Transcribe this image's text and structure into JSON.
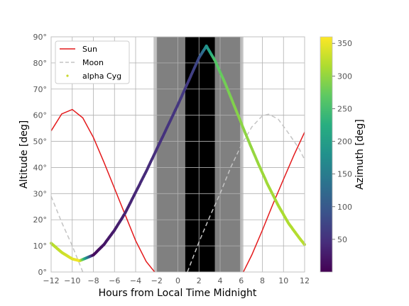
{
  "chart_data": {
    "type": "scatter",
    "xlabel": "Hours from Local Time Midnight",
    "ylabel": "Altitude [deg]",
    "xlim": [
      -12,
      12
    ],
    "ylim": [
      0,
      90
    ],
    "x_ticks": [
      -12,
      -10,
      -8,
      -6,
      -4,
      -2,
      0,
      2,
      4,
      6,
      8,
      10,
      12
    ],
    "x_tick_labels": [
      "−12",
      "−10",
      "−8",
      "−6",
      "−4",
      "−2",
      "0",
      "2",
      "4",
      "6",
      "8",
      "10",
      "12"
    ],
    "y_ticks": [
      0,
      10,
      20,
      30,
      40,
      50,
      60,
      70,
      80,
      90
    ],
    "y_tick_labels": [
      "0°",
      "10°",
      "20°",
      "30°",
      "40°",
      "50°",
      "60°",
      "70°",
      "80°",
      "90°"
    ],
    "grid": true,
    "legend": {
      "placement": "top-left",
      "entries": [
        {
          "label": "Sun",
          "style": "solid",
          "color": "#e41a1c"
        },
        {
          "label": "Moon",
          "style": "dashed",
          "color": "#c4c4c4"
        },
        {
          "label": "alpha Cyg",
          "style": "points",
          "color": "#c8d82a"
        }
      ]
    },
    "twilight_shading": [
      {
        "x_range": [
          -2.3,
          6.2
        ],
        "color": "#c4c4c4",
        "label": "civil twilight"
      },
      {
        "x_range": [
          -2.0,
          5.9
        ],
        "color": "#808080",
        "label": "nautical twilight"
      },
      {
        "x_range": [
          0.7,
          3.5
        ],
        "color": "#000000",
        "label": "night"
      }
    ],
    "series": [
      {
        "name": "Sun",
        "style": "solid",
        "color": "#e41a1c",
        "segments": [
          {
            "x": [
              -12,
              -11,
              -10,
              -9,
              -8,
              -7,
              -6,
              -5,
              -4,
              -3,
              -2.2
            ],
            "y": [
              54,
              60.5,
              62.2,
              59,
              51.5,
              42,
              32,
              22,
              12,
              4,
              0
            ]
          },
          {
            "x": [
              6.2,
              7,
              8,
              9,
              10,
              11,
              12
            ],
            "y": [
              0,
              6.5,
              16,
              26,
              35.5,
              44.8,
              53.5
            ]
          }
        ]
      },
      {
        "name": "Moon",
        "style": "dashed",
        "color": "#c4c4c4",
        "segments": [
          {
            "x": [
              -12,
              -11,
              -10,
              -9.4,
              -9.0
            ],
            "y": [
              29,
              19,
              10,
              4,
              0
            ]
          },
          {
            "x": [
              0.9,
              2,
              3,
              4,
              5,
              6,
              7,
              8,
              8.6,
              9.5,
              10.5,
              11.5,
              12
            ],
            "y": [
              0,
              11.5,
              21,
              30,
              40,
              48.5,
              55.5,
              59.8,
              60.4,
              58.5,
              53,
              47,
              43
            ]
          }
        ]
      },
      {
        "name": "alpha Cyg",
        "style": "points",
        "colorbar_label": "Azimuth [deg]",
        "colorbar_range": [
          0,
          360
        ],
        "colorbar_ticks": [
          50,
          100,
          150,
          200,
          250,
          300,
          350
        ],
        "x": [
          -12,
          -11,
          -10,
          -9.3,
          -8,
          -7,
          -6,
          -5,
          -4,
          -3,
          -2,
          -1,
          0,
          1,
          2,
          2.7,
          3.5,
          4.5,
          5.5,
          6.5,
          7.5,
          8.5,
          9.5,
          10.5,
          11.5,
          12
        ],
        "y": [
          11,
          7.5,
          5,
          4.3,
          6.5,
          10.5,
          16,
          22.5,
          30.5,
          38.5,
          47,
          55.5,
          64,
          73,
          82,
          86.5,
          81,
          72,
          62,
          52,
          42.5,
          33.5,
          25.5,
          18.5,
          13,
          10.5
        ],
        "azimuth": [
          318,
          330,
          343,
          355,
          10,
          20,
          28,
          35,
          40,
          44,
          48,
          52,
          56,
          62,
          80,
          180,
          260,
          282,
          292,
          298,
          303,
          308,
          312,
          316,
          320,
          322
        ]
      }
    ]
  }
}
